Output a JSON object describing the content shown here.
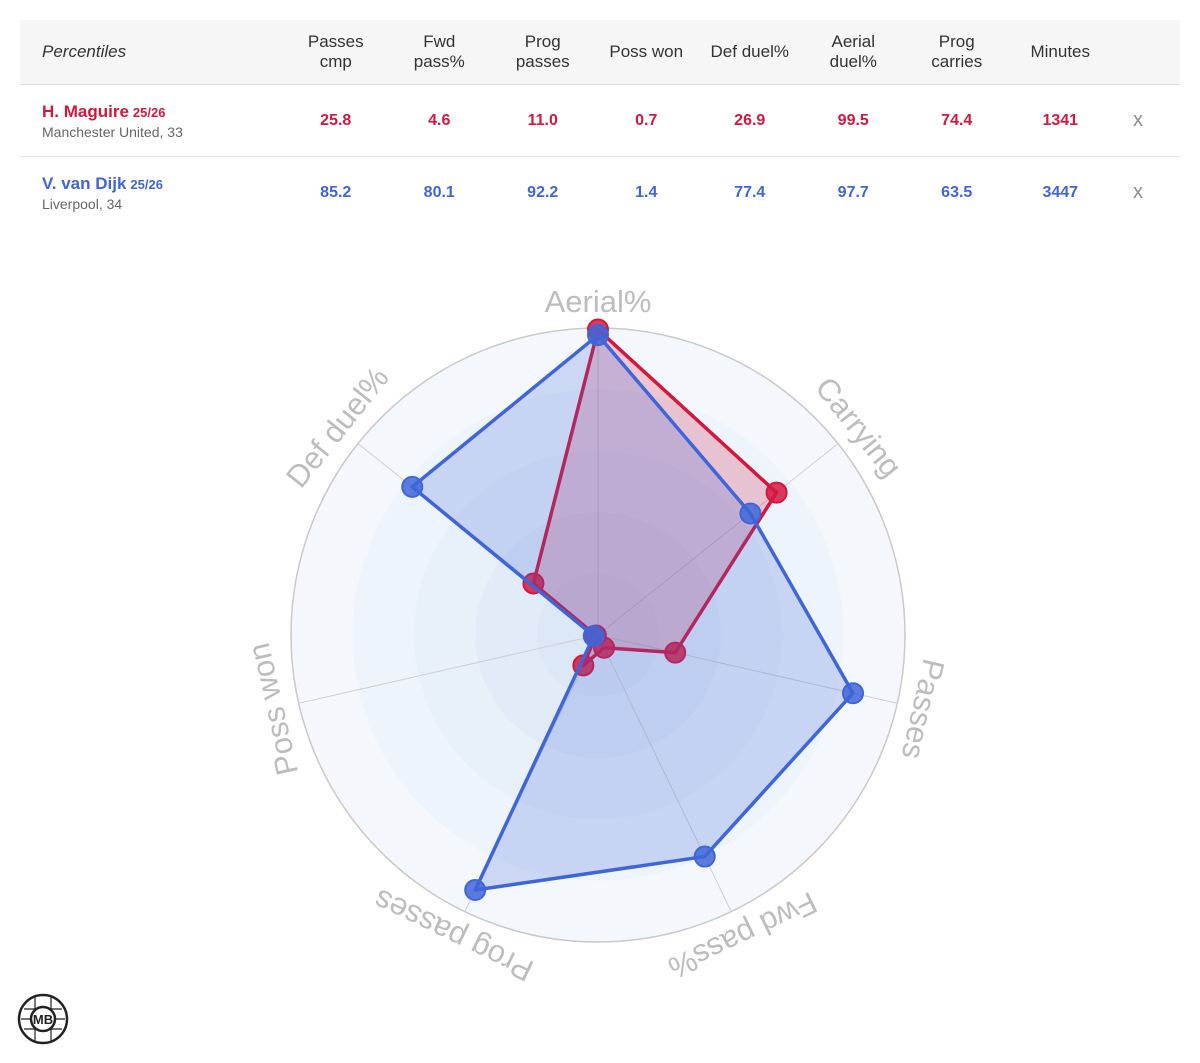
{
  "table": {
    "header_title": "Percentiles",
    "columns": [
      "Passes\ncmp",
      "Fwd\npass%",
      "Prog\npasses",
      "Poss won",
      "Def duel%",
      "Aerial\nduel%",
      "Prog\ncarries",
      "Minutes"
    ],
    "remove_label": "x",
    "players": [
      {
        "name": "H. Maguire",
        "season": "25/26",
        "team": "Manchester United, 33",
        "values": [
          "25.8",
          "4.6",
          "11.0",
          "0.7",
          "26.9",
          "99.5",
          "74.4",
          "1341"
        ],
        "color": "#d3173f"
      },
      {
        "name": "V. van Dijk",
        "season": "25/26",
        "team": "Liverpool, 34",
        "values": [
          "85.2",
          "80.1",
          "92.2",
          "1.4",
          "77.4",
          "97.7",
          "63.5",
          "3447"
        ],
        "color": "#3f66d8"
      }
    ]
  },
  "chart_data": {
    "type": "radar",
    "axes": [
      "Aerial%",
      "Carrying",
      "Passes",
      "Fwd pass%",
      "Prog passes",
      "Poss won",
      "Def duel%"
    ],
    "range": [
      0,
      100
    ],
    "rings": 5,
    "series": [
      {
        "name": "H. Maguire",
        "color": "#d3173f",
        "fill": "rgba(211,23,63,0.22)",
        "values": [
          99.5,
          74.4,
          25.8,
          4.6,
          11.0,
          0.7,
          26.9
        ]
      },
      {
        "name": "V. van Dijk",
        "color": "#3f66d8",
        "fill": "rgba(63,102,216,0.22)",
        "values": [
          97.7,
          63.5,
          85.2,
          80.1,
          92.2,
          1.4,
          77.4
        ]
      }
    ]
  },
  "logo": {
    "text": "MB"
  }
}
